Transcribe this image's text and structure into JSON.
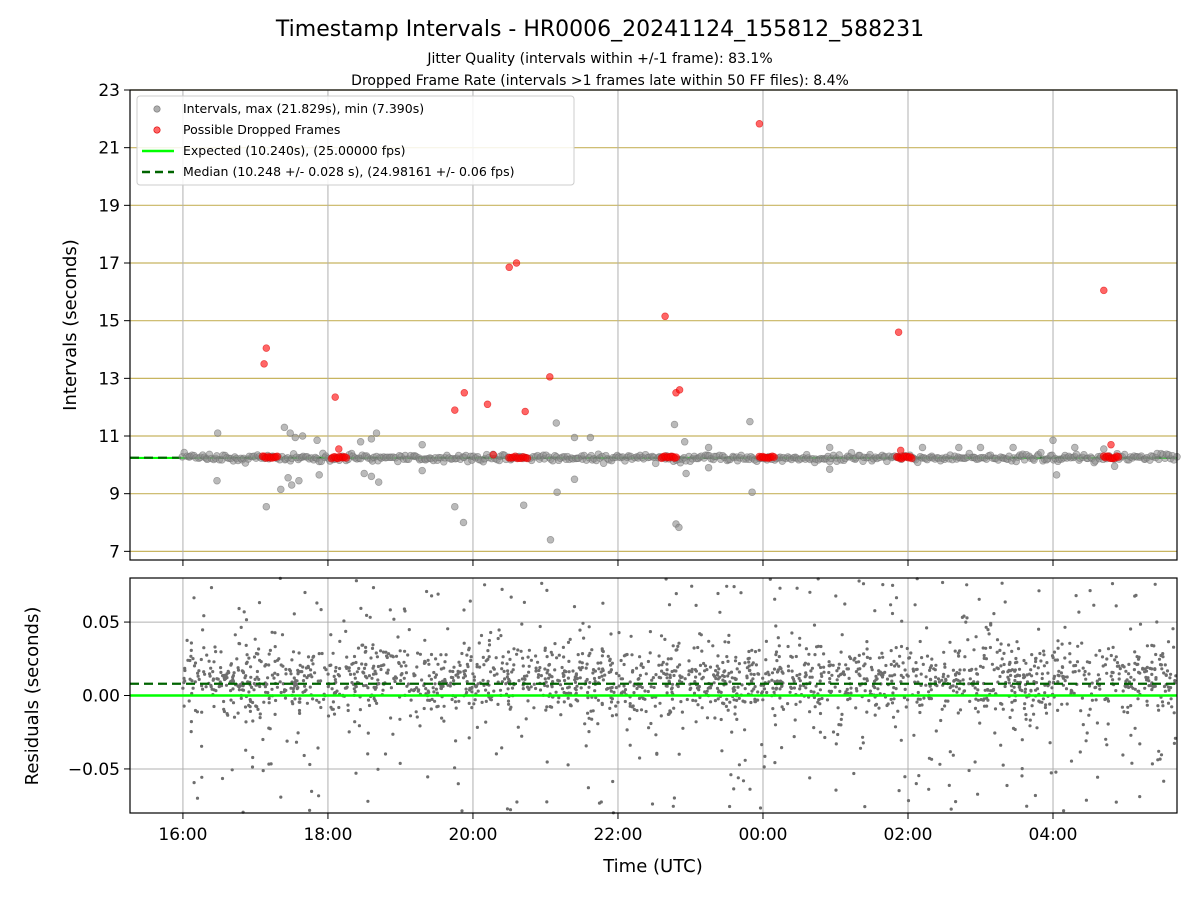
{
  "header": {
    "title": "Timestamp Intervals - HR0006_20241124_155812_588231",
    "subtitle_1": "Jitter Quality (intervals within +/-1 frame): 83.1%",
    "subtitle_2": "Dropped Frame Rate (intervals >1 frames late within 50 FF files): 8.4%"
  },
  "colors": {
    "interval_points": "#8c8c8c",
    "dropped_points": "#ff0000",
    "expected_line": "#00ff00",
    "median_line": "#006400",
    "h_grid": "#c8b560",
    "v_grid": "#b0b0b0",
    "residual_points": "#6e6e6e"
  },
  "chart_data": [
    {
      "type": "scatter",
      "ylabel": "Intervals (seconds)",
      "x_unit": "hours (continuous clock, 24 = 00:00 next day)",
      "xlim": [
        15.27,
        29.71
      ],
      "ylim": [
        6.7,
        23
      ],
      "yticks": [
        7,
        9,
        11,
        13,
        15,
        17,
        19,
        21,
        23
      ],
      "grid": "on",
      "legend_position": "top-left",
      "legend": [
        {
          "label": "Intervals, max (21.829s), min (7.390s)",
          "marker": "grey-dot"
        },
        {
          "label": "Possible Dropped Frames",
          "marker": "red-dot"
        },
        {
          "label": "Expected (10.240s), (25.00000 fps)",
          "marker": "green-solid"
        },
        {
          "label": "Median (10.248 +/- 0.028 s), (24.98161 +/- 0.06 fps)",
          "marker": "darkgreen-dashed"
        }
      ],
      "expected_interval": 10.24,
      "median_interval": 10.248,
      "max_interval": 21.829,
      "min_interval": 7.39,
      "interval_points_baseline": {
        "x_range": [
          16.0,
          29.7
        ],
        "y_center": 10.24,
        "y_spread": 0.12
      },
      "interval_points_outliers": [
        {
          "x": 16.48,
          "y": 11.1
        },
        {
          "x": 16.47,
          "y": 9.45
        },
        {
          "x": 17.15,
          "y": 8.55
        },
        {
          "x": 17.35,
          "y": 9.15
        },
        {
          "x": 17.45,
          "y": 9.55
        },
        {
          "x": 17.5,
          "y": 9.3
        },
        {
          "x": 17.55,
          "y": 10.95
        },
        {
          "x": 17.6,
          "y": 9.45
        },
        {
          "x": 17.4,
          "y": 11.3
        },
        {
          "x": 17.48,
          "y": 11.1
        },
        {
          "x": 17.65,
          "y": 11.0
        },
        {
          "x": 17.85,
          "y": 10.85
        },
        {
          "x": 17.88,
          "y": 9.65
        },
        {
          "x": 18.45,
          "y": 10.8
        },
        {
          "x": 18.6,
          "y": 10.9
        },
        {
          "x": 18.67,
          "y": 11.1
        },
        {
          "x": 18.5,
          "y": 9.7
        },
        {
          "x": 18.6,
          "y": 9.6
        },
        {
          "x": 18.7,
          "y": 9.4
        },
        {
          "x": 19.3,
          "y": 10.7
        },
        {
          "x": 19.3,
          "y": 9.8
        },
        {
          "x": 19.75,
          "y": 8.55
        },
        {
          "x": 19.87,
          "y": 8.0
        },
        {
          "x": 20.7,
          "y": 8.6
        },
        {
          "x": 21.07,
          "y": 7.4
        },
        {
          "x": 21.16,
          "y": 9.05
        },
        {
          "x": 21.15,
          "y": 11.45
        },
        {
          "x": 21.4,
          "y": 10.95
        },
        {
          "x": 21.4,
          "y": 9.5
        },
        {
          "x": 21.62,
          "y": 10.95
        },
        {
          "x": 22.78,
          "y": 11.4
        },
        {
          "x": 22.8,
          "y": 7.95
        },
        {
          "x": 22.84,
          "y": 7.83
        },
        {
          "x": 22.92,
          "y": 10.8
        },
        {
          "x": 22.94,
          "y": 9.7
        },
        {
          "x": 23.25,
          "y": 10.6
        },
        {
          "x": 23.25,
          "y": 9.9
        },
        {
          "x": 23.82,
          "y": 11.5
        },
        {
          "x": 23.85,
          "y": 9.05
        },
        {
          "x": 24.92,
          "y": 10.6
        },
        {
          "x": 24.92,
          "y": 9.85
        },
        {
          "x": 26.2,
          "y": 10.6
        },
        {
          "x": 26.7,
          "y": 10.6
        },
        {
          "x": 27.0,
          "y": 10.6
        },
        {
          "x": 27.45,
          "y": 10.6
        },
        {
          "x": 28.0,
          "y": 10.85
        },
        {
          "x": 28.05,
          "y": 9.65
        },
        {
          "x": 28.3,
          "y": 10.6
        },
        {
          "x": 28.7,
          "y": 10.55
        },
        {
          "x": 28.85,
          "y": 9.95
        }
      ],
      "dropped_frame_clusters": [
        {
          "x_range": [
            17.1,
            17.3
          ],
          "y": 10.26
        },
        {
          "x_range": [
            18.05,
            18.25
          ],
          "y": 10.26
        },
        {
          "x_range": [
            20.5,
            20.75
          ],
          "y": 10.26
        },
        {
          "x_range": [
            22.6,
            22.8
          ],
          "y": 10.26
        },
        {
          "x_range": [
            23.95,
            24.15
          ],
          "y": 10.26
        },
        {
          "x_range": [
            25.85,
            26.05
          ],
          "y": 10.26
        },
        {
          "x_range": [
            28.7,
            28.9
          ],
          "y": 10.26
        }
      ],
      "dropped_frame_points": [
        {
          "x": 17.15,
          "y": 14.05
        },
        {
          "x": 17.12,
          "y": 13.5
        },
        {
          "x": 18.1,
          "y": 12.35
        },
        {
          "x": 18.15,
          "y": 10.55
        },
        {
          "x": 19.75,
          "y": 11.9
        },
        {
          "x": 19.88,
          "y": 12.5
        },
        {
          "x": 20.2,
          "y": 12.1
        },
        {
          "x": 20.28,
          "y": 10.35
        },
        {
          "x": 20.5,
          "y": 16.85
        },
        {
          "x": 20.6,
          "y": 17.0
        },
        {
          "x": 20.72,
          "y": 11.85
        },
        {
          "x": 21.06,
          "y": 13.05
        },
        {
          "x": 22.65,
          "y": 15.15
        },
        {
          "x": 22.8,
          "y": 12.5
        },
        {
          "x": 22.85,
          "y": 12.6
        },
        {
          "x": 23.95,
          "y": 21.829
        },
        {
          "x": 25.87,
          "y": 14.6
        },
        {
          "x": 25.9,
          "y": 10.5
        },
        {
          "x": 28.7,
          "y": 16.05
        },
        {
          "x": 28.8,
          "y": 10.7
        }
      ]
    },
    {
      "type": "scatter",
      "xlabel": "Time (UTC)",
      "ylabel": "Residuals (seconds)",
      "x_unit": "hours (continuous clock, 24 = 00:00 next day)",
      "xlim": [
        15.27,
        29.71
      ],
      "ylim": [
        -0.08,
        0.08
      ],
      "yticks": [
        -0.05,
        0.0,
        0.05
      ],
      "ytick_labels": [
        "−0.05",
        "0.00",
        "0.05"
      ],
      "xticks": [
        16,
        18,
        20,
        22,
        24,
        26,
        28
      ],
      "xtick_labels": [
        "16:00",
        "18:00",
        "20:00",
        "22:00",
        "00:00",
        "02:00",
        "04:00"
      ],
      "grid": "on",
      "expected_residual": 0.0,
      "median_residual": 0.008,
      "residual_points": {
        "x_range": [
          16.0,
          29.7
        ],
        "center": 0.01,
        "core_spread": 0.02,
        "outer_spread": 0.08
      }
    }
  ]
}
